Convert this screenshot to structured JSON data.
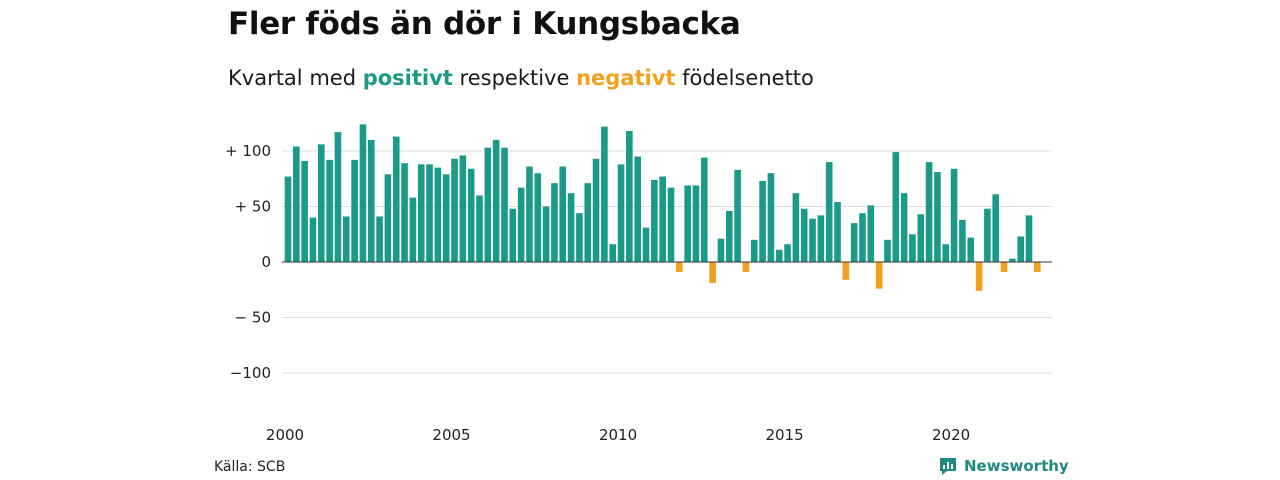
{
  "header": {
    "title": "Fler föds än dör i Kungsbacka",
    "subtitle_prefix": "Kvartal med",
    "subtitle_pos": "positivt",
    "subtitle_mid": "respektive",
    "subtitle_neg": "negativt",
    "subtitle_suffix": "födelsenetto"
  },
  "footer": {
    "source": "Källa: SCB",
    "brand": "Newsworthy"
  },
  "colors": {
    "positive": "#1a9a87",
    "negative": "#f0a21e",
    "brand": "#1f8a80",
    "grid": "#dddddd"
  },
  "chart_data": {
    "type": "bar",
    "title": "Fler föds än dör i Kungsbacka",
    "subtitle": "Kvartal med positivt respektive negativt födelsenetto",
    "xlabel": "",
    "ylabel": "",
    "x_start": "2000 Q1",
    "x_ticks": [
      "2000",
      "2005",
      "2010",
      "2015",
      "2020"
    ],
    "y_ticks": [
      100,
      50,
      0,
      -50,
      -100
    ],
    "y_tick_labels": [
      "+ 100",
      "+  50",
      "0",
      "− 50",
      "−100"
    ],
    "ylim": [
      -110,
      125
    ],
    "grid": true,
    "values": [
      77,
      104,
      91,
      40,
      106,
      92,
      117,
      41,
      92,
      124,
      110,
      41,
      79,
      113,
      89,
      58,
      88,
      88,
      85,
      79,
      93,
      96,
      84,
      60,
      103,
      110,
      103,
      48,
      67,
      86,
      80,
      50,
      71,
      86,
      62,
      44,
      71,
      93,
      122,
      16,
      88,
      118,
      95,
      31,
      74,
      77,
      67,
      -9,
      69,
      69,
      94,
      -19,
      21,
      46,
      83,
      -9,
      20,
      73,
      80,
      11,
      16,
      62,
      48,
      39,
      42,
      90,
      54,
      -16,
      35,
      44,
      51,
      -24,
      20,
      99,
      62,
      25,
      43,
      90,
      81,
      16,
      84,
      38,
      22,
      -26,
      48,
      61,
      -9,
      3,
      23,
      42,
      -9
    ]
  }
}
